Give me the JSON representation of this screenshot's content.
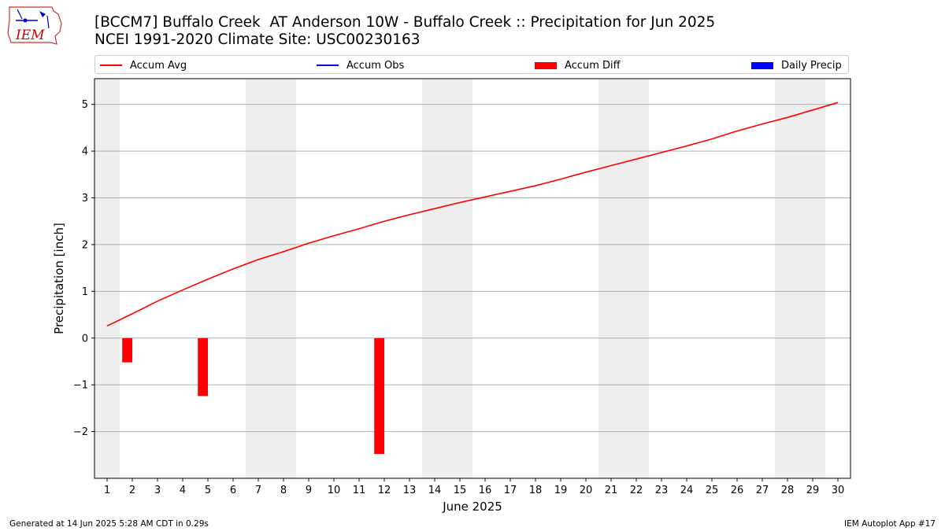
{
  "header": {
    "title": "[BCCM7] Buffalo Creek  AT Anderson 10W - Buffalo Creek :: Precipitation for Jun 2025",
    "subtitle": "NCEI 1991-2020 Climate Site: USC00230163",
    "logo_text": "IEM"
  },
  "legend": [
    {
      "label": "Accum Avg",
      "kind": "line",
      "color": "#ff0000"
    },
    {
      "label": "Accum Obs",
      "kind": "line",
      "color": "#0000ff"
    },
    {
      "label": "Accum Diff",
      "kind": "box",
      "color": "#ff0000"
    },
    {
      "label": "Daily Precip",
      "kind": "box",
      "color": "#0000ff"
    }
  ],
  "footer": {
    "generated": "Generated at 14 Jun 2025 5:28 AM CDT in 0.29s",
    "app": "IEM Autoplot App #17"
  },
  "chart_data": {
    "type": "bar",
    "xlabel": "June 2025",
    "ylabel": "Precipitation [inch]",
    "xlim": [
      0.5,
      30.5
    ],
    "ylim": [
      -3,
      5.55
    ],
    "yticks": [
      -2,
      -1,
      0,
      1,
      2,
      3,
      4,
      5
    ],
    "ytick_labels": [
      "−2",
      "−1",
      "0",
      "1",
      "2",
      "3",
      "4",
      "5"
    ],
    "x": [
      1,
      2,
      3,
      4,
      5,
      6,
      7,
      8,
      9,
      10,
      11,
      12,
      13,
      14,
      15,
      16,
      17,
      18,
      19,
      20,
      21,
      22,
      23,
      24,
      25,
      26,
      27,
      28,
      29,
      30
    ],
    "weekend_bands": [
      [
        0.5,
        1.5
      ],
      [
        6.5,
        8.5
      ],
      [
        13.5,
        15.5
      ],
      [
        20.5,
        22.5
      ],
      [
        27.5,
        29.5
      ]
    ],
    "grid": "y",
    "series": [
      {
        "name": "Accum Avg",
        "type": "line",
        "color": "#ff0000",
        "values": [
          0.26,
          0.52,
          0.79,
          1.03,
          1.26,
          1.48,
          1.68,
          1.85,
          2.03,
          2.19,
          2.34,
          2.5,
          2.64,
          2.77,
          2.9,
          3.02,
          3.14,
          3.26,
          3.4,
          3.55,
          3.69,
          3.83,
          3.97,
          4.11,
          4.26,
          4.43,
          4.58,
          4.72,
          4.88,
          5.04
        ]
      },
      {
        "name": "Accum Diff",
        "type": "bar",
        "color": "#ff0000",
        "x": [
          1.8,
          4.8,
          11.8
        ],
        "values": [
          -0.52,
          -1.24,
          -2.48
        ]
      }
    ]
  }
}
